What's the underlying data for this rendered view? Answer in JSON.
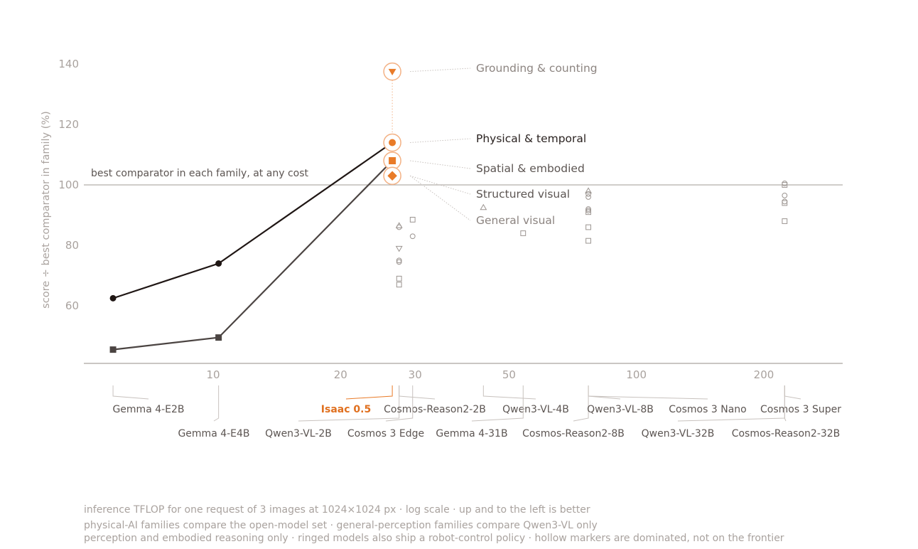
{
  "chart_data": {
    "type": "scatter",
    "title": "",
    "ylabel": "score ÷ best comparator in family (%)",
    "xlabel": "inference TFLOP for one request of 3 images at 1024×1024 px",
    "x_scale": "log",
    "x_ticks": [
      10,
      20,
      30,
      50,
      100,
      200
    ],
    "y_ticks": [
      60,
      80,
      100,
      120,
      140
    ],
    "reference_line": {
      "y": 100,
      "label": "best comparator in each family, at any cost"
    },
    "models": [
      {
        "name": "Gemma 4-E2B",
        "tflop": 5.8,
        "highlight": false
      },
      {
        "name": "Gemma 4-E4B",
        "tflop": 10.3,
        "highlight": false
      },
      {
        "name": "Isaac 0.5",
        "tflop": 26.5,
        "highlight": true
      },
      {
        "name": "Qwen3-VL-2B",
        "tflop": 27.5,
        "highlight": false
      },
      {
        "name": "Cosmos-Reason2-2B",
        "tflop": 27.5,
        "highlight": false
      },
      {
        "name": "Cosmos 3 Edge",
        "tflop": 29.6,
        "highlight": false
      },
      {
        "name": "Qwen3-VL-4B",
        "tflop": 43.5,
        "highlight": false
      },
      {
        "name": "Gemma 4-31B",
        "tflop": 54,
        "highlight": false
      },
      {
        "name": "Cosmos-Reason2-8B",
        "tflop": 77,
        "highlight": false
      },
      {
        "name": "Qwen3-VL-8B",
        "tflop": 77,
        "highlight": false
      },
      {
        "name": "Cosmos 3 Nano",
        "tflop": 77,
        "highlight": false
      },
      {
        "name": "Qwen3-VL-32B",
        "tflop": 224,
        "highlight": false
      },
      {
        "name": "Cosmos 3 Super",
        "tflop": 224,
        "highlight": false
      },
      {
        "name": "Cosmos-Reason2-32B",
        "tflop": 224,
        "highlight": false
      }
    ],
    "label_rows": [
      {
        "row": 1,
        "names": [
          "Gemma 4-E2B",
          "Isaac 0.5",
          "Cosmos-Reason2-2B",
          "Qwen3-VL-4B",
          "Qwen3-VL-8B",
          "Cosmos 3 Nano",
          "Cosmos 3 Super"
        ]
      },
      {
        "row": 2,
        "names": [
          "Gemma 4-E4B",
          "Qwen3-VL-2B",
          "Cosmos 3 Edge",
          "Gemma 4-31B",
          "Cosmos-Reason2-8B",
          "Qwen3-VL-32B",
          "Cosmos-Reason2-32B"
        ]
      }
    ],
    "families": [
      {
        "name": "Grounding & counting",
        "marker": "triangle-down",
        "isaac_value": 137.5,
        "label_style": "light"
      },
      {
        "name": "Physical & temporal",
        "marker": "circle",
        "isaac_value": 114,
        "label_style": "dark"
      },
      {
        "name": "Spatial & embodied",
        "marker": "square",
        "isaac_value": 108,
        "label_style": "mid"
      },
      {
        "name": "Structured visual",
        "marker": "diamond",
        "isaac_value": 103,
        "label_style": "mid"
      },
      {
        "name": "General visual",
        "marker": "triangle-up",
        "isaac_value": 103,
        "label_style": "light"
      }
    ],
    "frontier_series": [
      {
        "family": "Physical & temporal",
        "marker": "circle",
        "color": "#1f1614",
        "points": [
          {
            "x": 5.8,
            "y": 62.5
          },
          {
            "x": 10.3,
            "y": 74
          },
          {
            "x": 26.5,
            "y": 114
          }
        ]
      },
      {
        "family": "Spatial & embodied",
        "marker": "square",
        "color": "#4b4442",
        "points": [
          {
            "x": 5.8,
            "y": 45.5
          },
          {
            "x": 10.3,
            "y": 49.5
          },
          {
            "x": 26.5,
            "y": 108
          }
        ]
      }
    ],
    "dominated_points": [
      {
        "x": 27.5,
        "y": 86.5,
        "marker": "triangle-up"
      },
      {
        "x": 27.5,
        "y": 86,
        "marker": "circle"
      },
      {
        "x": 27.5,
        "y": 79,
        "marker": "triangle-down"
      },
      {
        "x": 27.5,
        "y": 75,
        "marker": "circle"
      },
      {
        "x": 27.5,
        "y": 74.5,
        "marker": "circle"
      },
      {
        "x": 27.5,
        "y": 69,
        "marker": "square"
      },
      {
        "x": 27.5,
        "y": 67,
        "marker": "square"
      },
      {
        "x": 29.6,
        "y": 88.5,
        "marker": "square"
      },
      {
        "x": 29.6,
        "y": 83,
        "marker": "circle"
      },
      {
        "x": 43.5,
        "y": 92.5,
        "marker": "triangle-up"
      },
      {
        "x": 54,
        "y": 84,
        "marker": "square"
      },
      {
        "x": 77,
        "y": 98,
        "marker": "triangle-up"
      },
      {
        "x": 77,
        "y": 97,
        "marker": "circle"
      },
      {
        "x": 77,
        "y": 96,
        "marker": "circle"
      },
      {
        "x": 77,
        "y": 92,
        "marker": "circle"
      },
      {
        "x": 77,
        "y": 91.5,
        "marker": "circle"
      },
      {
        "x": 77,
        "y": 91,
        "marker": "square"
      },
      {
        "x": 77,
        "y": 86,
        "marker": "square"
      },
      {
        "x": 77,
        "y": 81.5,
        "marker": "square"
      },
      {
        "x": 224,
        "y": 100.5,
        "marker": "circle"
      },
      {
        "x": 224,
        "y": 100,
        "marker": "square"
      },
      {
        "x": 224,
        "y": 96.5,
        "marker": "circle"
      },
      {
        "x": 224,
        "y": 94.5,
        "marker": "circle"
      },
      {
        "x": 224,
        "y": 94,
        "marker": "square"
      },
      {
        "x": 224,
        "y": 88,
        "marker": "square"
      }
    ],
    "grid": false,
    "legend": "none"
  },
  "colors": {
    "accent": "#e97b28",
    "accent_ring": "#f3b184",
    "frontier_dark": "#1f1614",
    "frontier_mid": "#4b4442",
    "muted": "#a9a29e"
  },
  "footer": {
    "line1": "inference TFLOP for one request of 3 images at 1024×1024 px  ·  log scale  ·  up and to the left is better",
    "line2": "physical-AI families compare the open-model set  ·  general-perception families compare Qwen3-VL only",
    "line3": "perception and embodied reasoning only  ·  ringed models also ship a robot-control policy  ·  hollow markers are dominated, not on the frontier"
  }
}
